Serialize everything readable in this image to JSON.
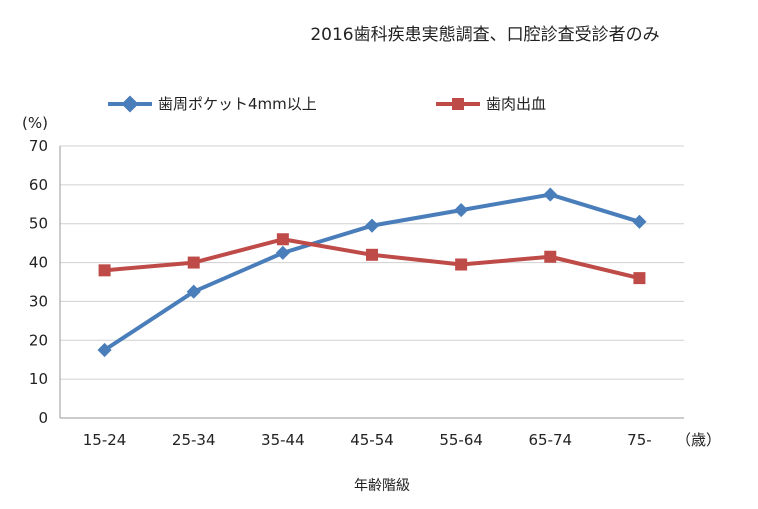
{
  "chart_data": {
    "type": "line",
    "title": "2016歯科疾患実態調査、口腔診査受診者のみ",
    "xlabel": "年齢階級",
    "x_unit": "（歳）",
    "y_unit": "(%)",
    "categories": [
      "15-24",
      "25-34",
      "35-44",
      "45-54",
      "55-64",
      "65-74",
      "75-"
    ],
    "ylim": [
      0,
      70
    ],
    "yticks": [
      0,
      10,
      20,
      30,
      40,
      50,
      60,
      70
    ],
    "grid": true,
    "legend_position": "top",
    "series": [
      {
        "name": "歯周ポケット4mm以上",
        "color": "#4a7ebb",
        "marker": "diamond",
        "values": [
          17.5,
          32.5,
          42.5,
          49.5,
          53.5,
          57.5,
          50.5
        ]
      },
      {
        "name": "歯肉出血",
        "color": "#be4b48",
        "marker": "square",
        "values": [
          38,
          40,
          46,
          42,
          39.5,
          41.5,
          36
        ]
      }
    ]
  }
}
